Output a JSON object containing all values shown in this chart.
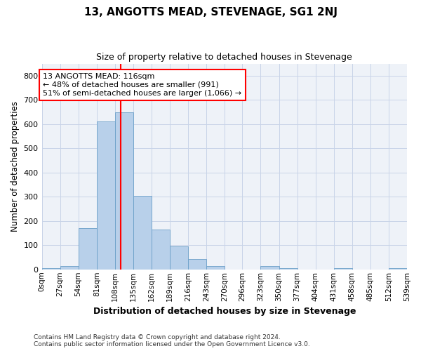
{
  "title": "13, ANGOTTS MEAD, STEVENAGE, SG1 2NJ",
  "subtitle": "Size of property relative to detached houses in Stevenage",
  "xlabel": "Distribution of detached houses by size in Stevenage",
  "ylabel": "Number of detached properties",
  "bin_edges": [
    0,
    27,
    54,
    81,
    108,
    135,
    162,
    189,
    216,
    243,
    270,
    296,
    323,
    350,
    377,
    404,
    431,
    458,
    485,
    512,
    539
  ],
  "bar_heights": [
    5,
    15,
    170,
    610,
    650,
    305,
    165,
    95,
    43,
    15,
    0,
    0,
    15,
    5,
    0,
    0,
    5,
    0,
    0,
    5
  ],
  "bar_color": "#b8d0ea",
  "bar_edge_color": "#6a9fc8",
  "grid_color": "#c8d4e8",
  "background_color": "#eef2f8",
  "vline_x": 116,
  "vline_color": "red",
  "annotation_text": "13 ANGOTTS MEAD: 116sqm\n← 48% of detached houses are smaller (991)\n51% of semi-detached houses are larger (1,066) →",
  "annotation_box_color": "white",
  "annotation_box_edge": "red",
  "footnote": "Contains HM Land Registry data © Crown copyright and database right 2024.\nContains public sector information licensed under the Open Government Licence v3.0.",
  "ylim": [
    0,
    850
  ],
  "yticks": [
    0,
    100,
    200,
    300,
    400,
    500,
    600,
    700,
    800
  ],
  "xlim": [
    0,
    539
  ]
}
